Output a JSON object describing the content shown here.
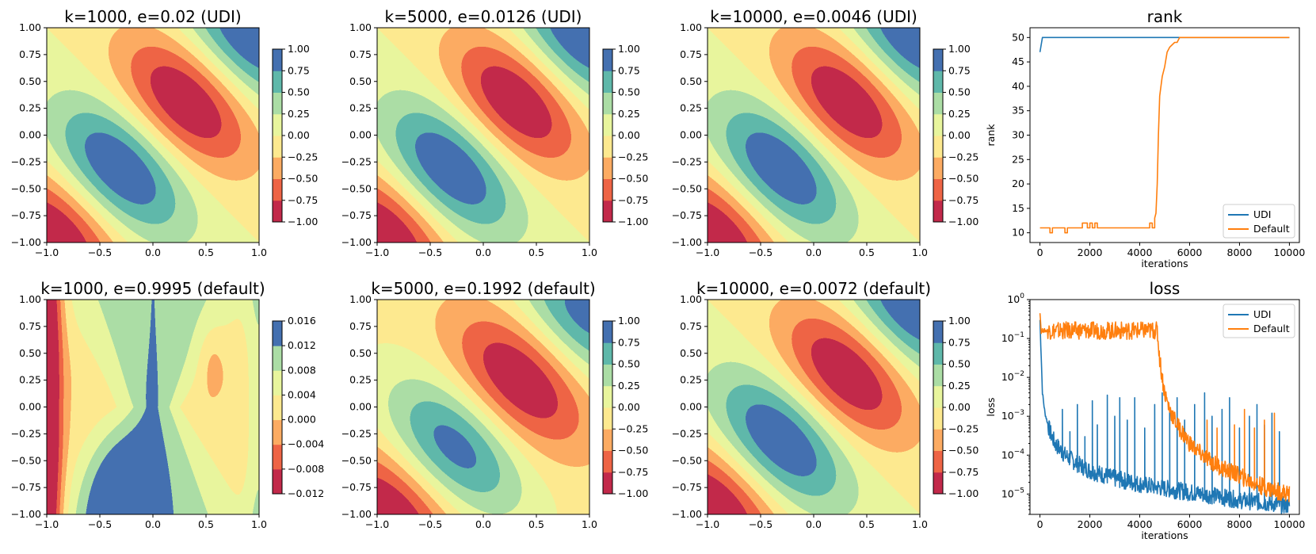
{
  "figure": {
    "description_none": ""
  },
  "colors": {
    "spectral8": [
      "#c2294a",
      "#ee6445",
      "#fcab62",
      "#fde98f",
      "#e8f59d",
      "#abdda5",
      "#5fb8aa",
      "#4470b0"
    ],
    "udi": "#1f77b4",
    "default": "#ff7f0e"
  },
  "chart_data": [
    {
      "type": "contourf",
      "title": "k=1000, e=0.02 (UDI)",
      "xlim": [
        -1.0,
        1.0
      ],
      "ylim": [
        -1.0,
        1.0
      ],
      "xticks": [
        "−1.0",
        "−0.5",
        "0.0",
        "0.5",
        "1.0"
      ],
      "yticks": [
        "−1.00",
        "−0.75",
        "−0.50",
        "−0.25",
        "0.00",
        "0.25",
        "0.50",
        "0.75",
        "1.00"
      ],
      "colorbar_ticks": [
        "−1.00",
        "−0.75",
        "−0.50",
        "−0.25",
        "0.00",
        "0.25",
        "0.50",
        "0.75",
        "1.00"
      ],
      "field": "target"
    },
    {
      "type": "contourf",
      "title": "k=5000, e=0.0126 (UDI)",
      "xlim": [
        -1.0,
        1.0
      ],
      "ylim": [
        -1.0,
        1.0
      ],
      "xticks": [
        "−1.0",
        "−0.5",
        "0.0",
        "0.5",
        "1.0"
      ],
      "yticks": [
        "−1.00",
        "−0.75",
        "−0.50",
        "−0.25",
        "0.00",
        "0.25",
        "0.50",
        "0.75",
        "1.00"
      ],
      "colorbar_ticks": [
        "−1.00",
        "−0.75",
        "−0.50",
        "−0.25",
        "0.00",
        "0.25",
        "0.50",
        "0.75",
        "1.00"
      ],
      "field": "target"
    },
    {
      "type": "contourf",
      "title": "k=10000, e=0.0046 (UDI)",
      "xlim": [
        -1.0,
        1.0
      ],
      "ylim": [
        -1.0,
        1.0
      ],
      "xticks": [
        "−1.0",
        "−0.5",
        "0.0",
        "0.5",
        "1.0"
      ],
      "yticks": [
        "−1.00",
        "−0.75",
        "−0.50",
        "−0.25",
        "0.00",
        "0.25",
        "0.50",
        "0.75",
        "1.00"
      ],
      "colorbar_ticks": [
        "−1.00",
        "−0.75",
        "−0.50",
        "−0.25",
        "0.00",
        "0.25",
        "0.50",
        "0.75",
        "1.00"
      ],
      "field": "target"
    },
    {
      "type": "line",
      "title": "rank",
      "xlabel": "iterations",
      "ylabel": "rank",
      "xlim": [
        -400,
        10400
      ],
      "ylim": [
        8.0,
        52.0
      ],
      "xticks": [
        0,
        2000,
        4000,
        6000,
        8000,
        10000
      ],
      "yticks": [
        10,
        15,
        20,
        25,
        30,
        35,
        40,
        45,
        50
      ],
      "legend": "lower right",
      "series": [
        {
          "name": "UDI",
          "x": [
            0,
            100,
            10000
          ],
          "y": [
            47,
            50,
            50
          ]
        },
        {
          "name": "Default",
          "x": [
            0,
            150,
            300,
            400,
            500,
            600,
            900,
            1000,
            1100,
            1200,
            1600,
            1700,
            1800,
            1900,
            2000,
            2100,
            2200,
            2300,
            2400,
            3000,
            4000,
            4300,
            4400,
            4500,
            4600,
            4650,
            4700,
            4750,
            4800,
            4850,
            4900,
            5000,
            5100,
            5200,
            5400,
            5500,
            5600,
            5800,
            6000,
            10000
          ],
          "y": [
            11,
            11,
            11,
            10,
            11,
            11,
            11,
            10,
            11,
            11,
            11,
            12,
            12,
            11,
            12,
            11,
            12,
            11,
            11,
            11,
            11,
            11,
            12,
            11,
            13,
            14,
            20,
            30,
            38,
            40,
            42,
            44,
            47,
            48,
            49,
            49,
            50,
            50,
            50,
            50
          ]
        }
      ]
    },
    {
      "type": "contourf",
      "title": "k=1000, e=0.9995 (default)",
      "xlim": [
        -1.0,
        1.0
      ],
      "ylim": [
        -1.0,
        1.0
      ],
      "xticks": [
        "−1.0",
        "−0.5",
        "0.0",
        "0.5",
        "1.0"
      ],
      "yticks": [
        "−1.00",
        "−0.75",
        "−0.50",
        "−0.25",
        "0.00",
        "0.25",
        "0.50",
        "0.75",
        "1.00"
      ],
      "colorbar_ticks": [
        "−0.012",
        "−0.008",
        "−0.004",
        "0.000",
        "0.004",
        "0.008",
        "0.012",
        "0.016"
      ],
      "field": "default_k1000"
    },
    {
      "type": "contourf",
      "title": "k=5000, e=0.1992 (default)",
      "xlim": [
        -1.0,
        1.0
      ],
      "ylim": [
        -1.0,
        1.0
      ],
      "xticks": [
        "−1.0",
        "−0.5",
        "0.0",
        "0.5",
        "1.0"
      ],
      "yticks": [
        "−1.00",
        "−0.75",
        "−0.50",
        "−0.25",
        "0.00",
        "0.25",
        "0.50",
        "0.75",
        "1.00"
      ],
      "colorbar_ticks": [
        "−1.00",
        "−0.75",
        "−0.50",
        "−0.25",
        "0.00",
        "0.25",
        "0.50",
        "0.75",
        "1.00"
      ],
      "field": "default_k5000"
    },
    {
      "type": "contourf",
      "title": "k=10000, e=0.0072 (default)",
      "xlim": [
        -1.0,
        1.0
      ],
      "ylim": [
        -1.0,
        1.0
      ],
      "xticks": [
        "−1.0",
        "−0.5",
        "0.0",
        "0.5",
        "1.0"
      ],
      "yticks": [
        "−1.00",
        "−0.75",
        "−0.50",
        "−0.25",
        "0.00",
        "0.25",
        "0.50",
        "0.75",
        "1.00"
      ],
      "colorbar_ticks": [
        "−1.00",
        "−0.75",
        "−0.50",
        "−0.25",
        "0.00",
        "0.25",
        "0.50",
        "0.75",
        "1.00"
      ],
      "field": "target"
    },
    {
      "type": "line",
      "title": "loss",
      "xlabel": "iterations",
      "ylabel": "loss",
      "yscale": "log",
      "xlim": [
        -400,
        10400
      ],
      "ylim": [
        3e-06,
        1.0
      ],
      "xticks": [
        0,
        2000,
        4000,
        6000,
        8000,
        10000
      ],
      "yticks": [
        "10^0",
        "10^-1",
        "10^-2",
        "10^-3",
        "10^-4",
        "10^-5"
      ],
      "legend": "upper right",
      "series": [
        {
          "name": "UDI",
          "x": [
            0,
            100,
            200,
            400,
            600,
            1000,
            1500,
            2000,
            3000,
            4000,
            5000,
            6000,
            7000,
            8000,
            9000,
            10000
          ],
          "y": [
            0.3,
            0.004,
            0.0012,
            0.0004,
            0.0002,
            0.0001,
            6e-05,
            4e-05,
            2.5e-05,
            1.8e-05,
            1.4e-05,
            1.1e-05,
            9e-06,
            7e-06,
            6e-06,
            5e-06
          ],
          "spikes_x": [
            900,
            1200,
            1500,
            1800,
            2100,
            2300,
            2700,
            3000,
            3200,
            3500,
            3800,
            4200,
            4600,
            4900,
            5200,
            5500,
            5800,
            6200,
            6600,
            6900,
            7300,
            7600,
            8000,
            8400,
            8700,
            9000,
            9300,
            9600
          ],
          "spikes_y": [
            0.0015,
            0.0004,
            0.002,
            0.0003,
            0.0025,
            0.0006,
            0.0035,
            0.001,
            0.003,
            0.0008,
            0.003,
            0.0005,
            0.002,
            0.004,
            0.0015,
            0.003,
            0.0008,
            0.002,
            0.004,
            0.001,
            0.0015,
            0.003,
            0.0005,
            0.001,
            0.002,
            0.0006,
            0.0012,
            0.0004
          ]
        },
        {
          "name": "Default",
          "x": [
            0,
            50,
            100,
            300,
            1000,
            2000,
            3000,
            4000,
            4700,
            4800,
            4900,
            5000,
            5200,
            5500,
            6000,
            6500,
            7000,
            7500,
            8000,
            8500,
            9000,
            9500,
            10000
          ],
          "y": [
            0.5,
            0.15,
            0.16,
            0.16,
            0.16,
            0.16,
            0.16,
            0.16,
            0.16,
            0.03,
            0.01,
            0.004,
            0.0015,
            0.0006,
            0.0002,
            0.0001,
            6e-05,
            4e-05,
            3e-05,
            2e-05,
            1.5e-05,
            1.2e-05,
            1e-05
          ],
          "spikes_x": [
            6700,
            7100,
            7800,
            8200,
            8600,
            9000,
            9400
          ],
          "spikes_y": [
            0.0008,
            0.0005,
            0.0006,
            0.0015,
            0.0005,
            0.0008,
            0.0012
          ]
        }
      ]
    }
  ]
}
